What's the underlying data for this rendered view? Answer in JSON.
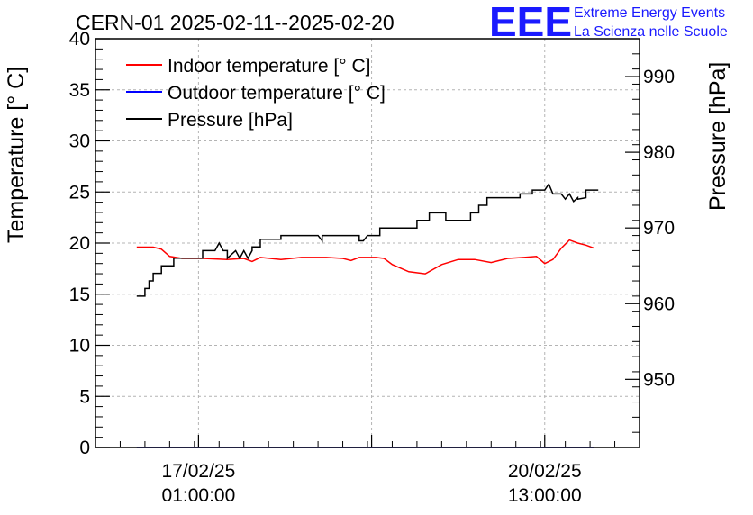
{
  "chart_data": {
    "type": "line",
    "title": "CERN-01 2025-02-11--2025-02-20",
    "ylabel": "Temperature [° C]",
    "y2label": "Pressure [hPa]",
    "ylim": [
      0,
      40
    ],
    "y2lim": [
      941,
      995
    ],
    "grid": true,
    "legend_position": "top-left",
    "x_start_date": "2025-02-16",
    "xlim_hours": [
      0,
      132
    ],
    "x_ticks": [
      {
        "h": 25,
        "date": "17/02/25",
        "time": "01:00:00"
      },
      {
        "h": 109,
        "date": "20/02/25",
        "time": "13:00:00"
      }
    ],
    "y_ticks": [
      0,
      5,
      10,
      15,
      20,
      25,
      30,
      35,
      40
    ],
    "y2_ticks": [
      950,
      960,
      970,
      980,
      990
    ],
    "series": [
      {
        "name": "Indoor temperature [° C]",
        "axis": "left",
        "color": "#ff0000",
        "points": [
          [
            10,
            19.6
          ],
          [
            14,
            19.6
          ],
          [
            16,
            19.4
          ],
          [
            18,
            18.7
          ],
          [
            21,
            18.5
          ],
          [
            26,
            18.5
          ],
          [
            32,
            18.4
          ],
          [
            36,
            18.5
          ],
          [
            38,
            18.2
          ],
          [
            40,
            18.6
          ],
          [
            45,
            18.4
          ],
          [
            50,
            18.6
          ],
          [
            56,
            18.6
          ],
          [
            60,
            18.5
          ],
          [
            62,
            18.3
          ],
          [
            64,
            18.6
          ],
          [
            68,
            18.6
          ],
          [
            70,
            18.5
          ],
          [
            72,
            17.9
          ],
          [
            76,
            17.2
          ],
          [
            80,
            17.0
          ],
          [
            84,
            17.9
          ],
          [
            88,
            18.4
          ],
          [
            92,
            18.4
          ],
          [
            96,
            18.1
          ],
          [
            100,
            18.5
          ],
          [
            104,
            18.6
          ],
          [
            107,
            18.7
          ],
          [
            109,
            18.0
          ],
          [
            111,
            18.4
          ],
          [
            113,
            19.5
          ],
          [
            115,
            20.3
          ],
          [
            117,
            20.0
          ],
          [
            119,
            19.8
          ],
          [
            121,
            19.5
          ]
        ]
      },
      {
        "name": "Outdoor temperature [° C]",
        "axis": "left",
        "color": "#0000ff",
        "points": [
          [
            10,
            0
          ],
          [
            121,
            0
          ]
        ]
      },
      {
        "name": "Pressure [hPa]",
        "axis": "right",
        "color": "#000000",
        "points": [
          [
            10,
            961
          ],
          [
            12,
            961
          ],
          [
            12,
            962
          ],
          [
            13,
            962
          ],
          [
            13,
            963
          ],
          [
            14,
            963
          ],
          [
            14,
            964
          ],
          [
            16,
            964
          ],
          [
            16,
            965
          ],
          [
            19,
            965
          ],
          [
            19,
            966
          ],
          [
            26,
            966
          ],
          [
            26,
            967
          ],
          [
            29,
            967
          ],
          [
            30,
            968
          ],
          [
            31,
            967
          ],
          [
            32,
            967
          ],
          [
            32,
            966
          ],
          [
            34,
            967
          ],
          [
            35,
            966
          ],
          [
            36,
            967
          ],
          [
            37,
            966
          ],
          [
            38,
            967
          ],
          [
            38,
            967.5
          ],
          [
            40,
            967.5
          ],
          [
            40,
            968.5
          ],
          [
            45,
            968.5
          ],
          [
            45,
            969
          ],
          [
            54,
            969
          ],
          [
            55,
            968.3
          ],
          [
            55,
            969
          ],
          [
            64,
            969
          ],
          [
            64,
            968.3
          ],
          [
            65,
            968.3
          ],
          [
            66,
            969
          ],
          [
            69,
            969
          ],
          [
            69,
            970
          ],
          [
            78,
            970
          ],
          [
            78,
            971
          ],
          [
            81,
            971
          ],
          [
            81,
            972
          ],
          [
            85,
            972
          ],
          [
            85,
            971
          ],
          [
            91,
            971
          ],
          [
            91,
            972
          ],
          [
            93,
            972
          ],
          [
            93,
            973
          ],
          [
            95,
            973
          ],
          [
            95,
            974
          ],
          [
            103,
            974
          ],
          [
            103,
            974.5
          ],
          [
            106,
            974.5
          ],
          [
            106,
            975
          ],
          [
            109,
            975
          ],
          [
            110,
            975.8
          ],
          [
            111,
            974.5
          ],
          [
            113,
            974.5
          ],
          [
            114,
            973.8
          ],
          [
            115,
            974.5
          ],
          [
            116,
            973.5
          ],
          [
            117,
            974
          ],
          [
            117,
            973.8
          ],
          [
            119,
            974
          ],
          [
            119,
            975
          ],
          [
            122,
            975
          ]
        ]
      }
    ]
  },
  "logo": {
    "letters": "EEE",
    "line1": "Extreme Energy Events",
    "line2": "La Scienza nelle Scuole"
  }
}
